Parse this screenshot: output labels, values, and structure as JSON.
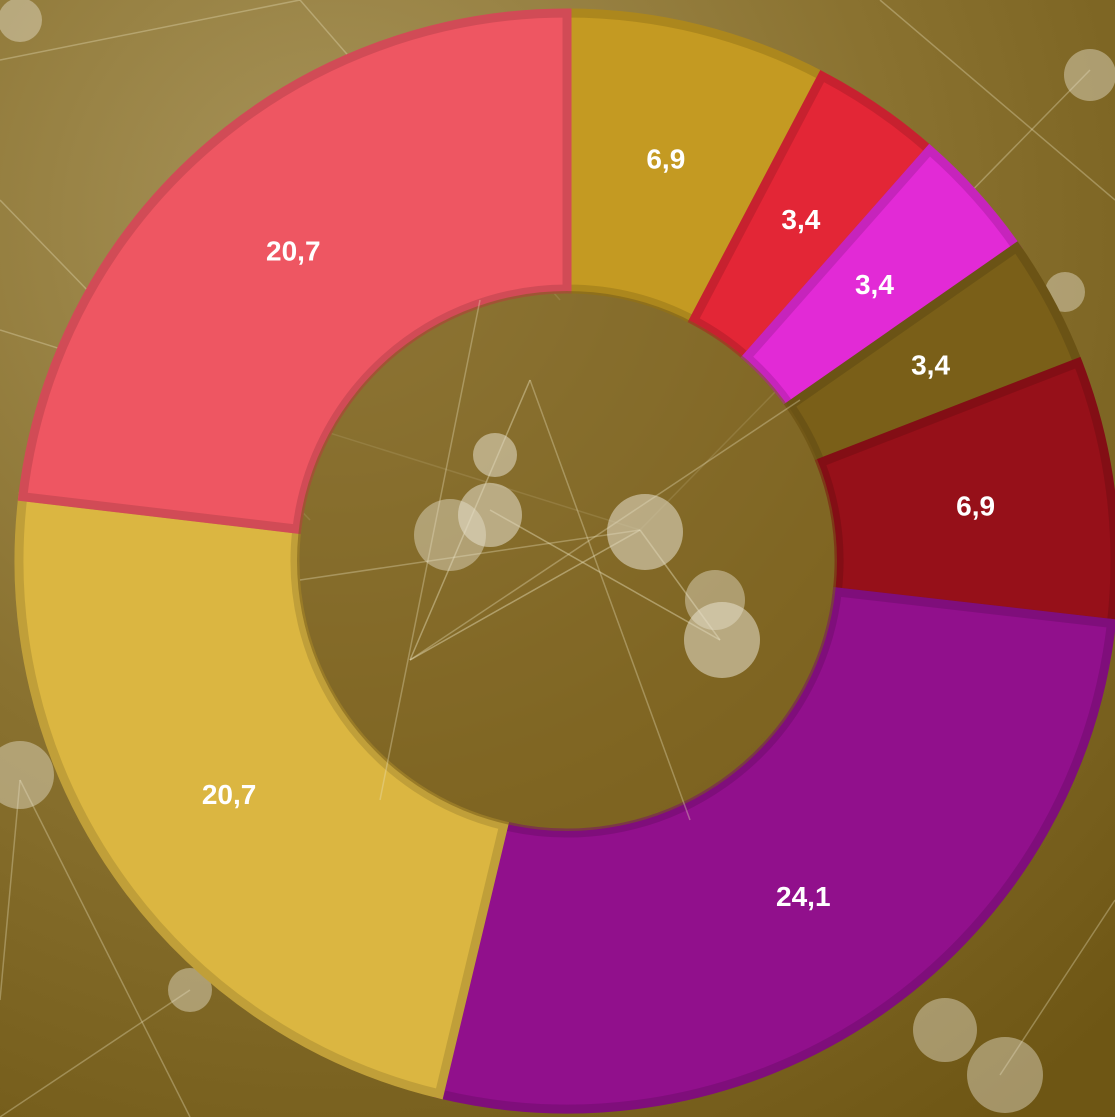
{
  "chart_data": {
    "type": "donut",
    "values": [
      6.9,
      3.4,
      3.4,
      3.4,
      6.9,
      24.1,
      20.7,
      20.7
    ],
    "value_labels": [
      "6,9",
      "3,4",
      "3,4",
      "3,4",
      "6,9",
      "24,1",
      "20,7",
      "20,7"
    ],
    "colors": [
      "#c49a22",
      "#e32636",
      "#e22ad6",
      "#7a5f18",
      "#961019",
      "#91108c",
      "#dbb641",
      "#ee5662"
    ]
  }
}
